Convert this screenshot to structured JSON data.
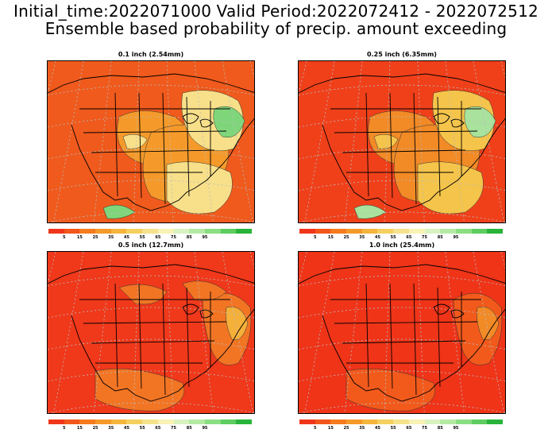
{
  "header": {
    "line1": "Initial_time:2022071000  Valid Period:2022072412 - 2022072512",
    "line2": "Ensemble based probability of precip. amount exceeding"
  },
  "colorbar": {
    "colors": [
      "#f0361a",
      "#f2561a",
      "#f57b1e",
      "#f59a2a",
      "#f5b43c",
      "#f5d060",
      "#f5e28c",
      "#f8f2b4",
      "#d8f2c0",
      "#b4eaa4",
      "#8ade82",
      "#5ccd5e",
      "#28b43a"
    ],
    "ticks": [
      "5",
      "15",
      "25",
      "35",
      "45",
      "55",
      "65",
      "75",
      "85",
      "95"
    ]
  },
  "panels": [
    {
      "title": "0.1 inch (2.54mm)",
      "base_color": "#f05a1c",
      "mid_color": "#f59a2a",
      "light_color": "#f8e08a",
      "green_color": "#7fd67a",
      "probability_level": "low"
    },
    {
      "title": "0.25 inch (6.35mm)",
      "base_color": "#f0401a",
      "mid_color": "#f28a26",
      "light_color": "#f5c44a",
      "green_color": "#a8e29c",
      "probability_level": "medium-low"
    },
    {
      "title": "0.5 inch (12.7mm)",
      "base_color": "#f0381a",
      "mid_color": "#f27524",
      "light_color": "#f5b03a",
      "green_color": "#f5b03a",
      "probability_level": "medium-high"
    },
    {
      "title": "1.0 inch (25.4mm)",
      "base_color": "#ef3418",
      "mid_color": "#f25a1c",
      "light_color": "#f28a26",
      "green_color": "#f28a26",
      "probability_level": "high"
    }
  ]
}
